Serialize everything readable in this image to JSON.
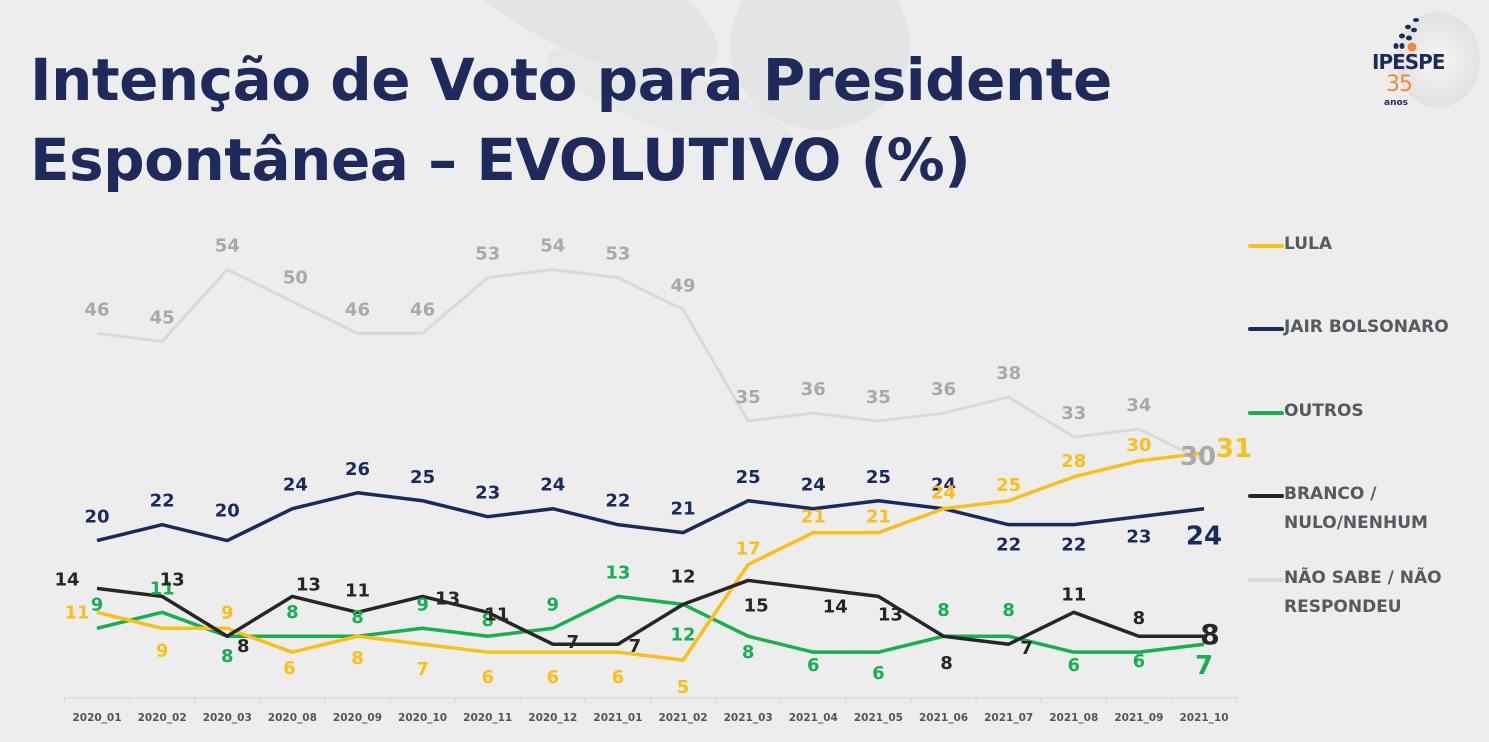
{
  "page": {
    "title_line1": "Intenção de Voto para Presidente",
    "title_line2": "Espontânea – EVOLUTIVO (%)",
    "logo": {
      "name": "IPESPE",
      "number": "35",
      "subtitle": "anos",
      "colors": {
        "navy": "#1f2a5c",
        "orange": "#f0883a"
      }
    }
  },
  "chart_data": {
    "type": "line",
    "title": "Intenção de Voto para Presidente Espontânea – EVOLUTIVO (%)",
    "xlabel": "",
    "ylabel": "",
    "ylim": [
      0,
      60
    ],
    "grid": false,
    "legend_placement": "right",
    "categories": [
      "2020_01",
      "2020_02",
      "2020_03",
      "2020_08",
      "2020_09",
      "2020_10",
      "2020_11",
      "2020_12",
      "2021_01",
      "2021_02",
      "2021_03",
      "2021_04",
      "2021_05",
      "2021_06",
      "2021_07",
      "2021_08",
      "2021_09",
      "2021_10"
    ],
    "series": [
      {
        "name": "LULA",
        "color": "#fbbf1a",
        "values": [
          11,
          9,
          9,
          6,
          8,
          7,
          6,
          6,
          6,
          5,
          17,
          21,
          21,
          24,
          25,
          28,
          30,
          31
        ]
      },
      {
        "name": "JAIR BOLSONARO",
        "color": "#1a2a5e",
        "values": [
          20,
          22,
          20,
          24,
          26,
          25,
          23,
          24,
          22,
          21,
          25,
          24,
          25,
          24,
          22,
          22,
          23,
          24
        ]
      },
      {
        "name": "OUTROS",
        "color": "#17b050",
        "values": [
          9,
          11,
          8,
          8,
          8,
          9,
          8,
          9,
          13,
          12,
          8,
          6,
          6,
          8,
          8,
          6,
          6,
          7
        ]
      },
      {
        "name": "BRANCO / NULO/NENHUM",
        "legend_lines": [
          "BRANCO /",
          "NULO/NENHUM"
        ],
        "color": "#262626",
        "values": [
          14,
          13,
          8,
          13,
          11,
          13,
          11,
          7,
          7,
          12,
          15,
          14,
          13,
          8,
          7,
          11,
          8,
          8
        ]
      },
      {
        "name": "NÃO SABE / NÃO RESPONDEU",
        "legend_lines": [
          "NÃO SABE / NÃO",
          "RESPONDEU"
        ],
        "color": "#d9d9d9",
        "label_color": "#a6a6a6",
        "values": [
          46,
          45,
          54,
          50,
          46,
          46,
          53,
          54,
          53,
          49,
          35,
          36,
          35,
          36,
          38,
          33,
          34,
          30
        ]
      }
    ]
  }
}
